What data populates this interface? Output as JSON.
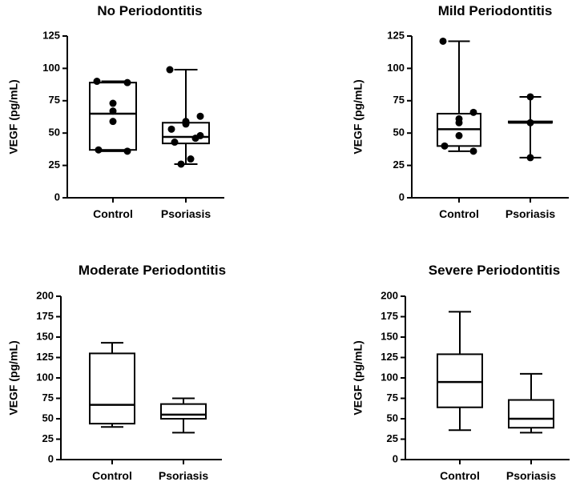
{
  "chart_data": [
    {
      "type": "box",
      "title": "No Periodontitis",
      "ylabel": "VEGF (pg/mL)",
      "ylim": [
        0,
        125
      ],
      "yticks": [
        0,
        25,
        50,
        75,
        100,
        125
      ],
      "categories": [
        "Control",
        "Psoriasis"
      ],
      "boxes": [
        {
          "name": "Control",
          "min": 36,
          "q1": 37,
          "median": 65,
          "q3": 89,
          "max": 90,
          "points": [
            90,
            89,
            73,
            67,
            59,
            37,
            36
          ]
        },
        {
          "name": "Psoriasis",
          "min": 26,
          "q1": 42,
          "median": 47,
          "q3": 58,
          "max": 99,
          "points": [
            99,
            63,
            59,
            58,
            57,
            53,
            48,
            46,
            43,
            30,
            26
          ]
        }
      ]
    },
    {
      "type": "box",
      "title": "Mild Periodontitis",
      "ylabel": "VEGF (pg/mL)",
      "ylim": [
        0,
        125
      ],
      "yticks": [
        0,
        25,
        50,
        75,
        100,
        125
      ],
      "categories": [
        "Control",
        "Psoriasis"
      ],
      "boxes": [
        {
          "name": "Control",
          "min": 36,
          "q1": 40,
          "median": 53,
          "q3": 65,
          "max": 121,
          "points": [
            121,
            66,
            61,
            58,
            48,
            40,
            36
          ]
        },
        {
          "name": "Psoriasis",
          "min": 31,
          "q1": 58,
          "median": 58,
          "q3": 59,
          "max": 78,
          "points": [
            78,
            58,
            31
          ]
        }
      ]
    },
    {
      "type": "box",
      "title": "Moderate Periodontitis",
      "ylabel": "VEGF (pg/mL)",
      "ylim": [
        0,
        200
      ],
      "yticks": [
        0,
        25,
        50,
        75,
        100,
        125,
        150,
        175,
        200
      ],
      "categories": [
        "Control",
        "Psoriasis"
      ],
      "boxes": [
        {
          "name": "Control",
          "min": 40,
          "q1": 44,
          "median": 67,
          "q3": 130,
          "max": 143
        },
        {
          "name": "Psoriasis",
          "min": 33,
          "q1": 50,
          "median": 55,
          "q3": 68,
          "max": 75
        }
      ]
    },
    {
      "type": "box",
      "title": "Severe Periodontitis",
      "ylabel": "VEGF (pg/mL)",
      "ylim": [
        0,
        200
      ],
      "yticks": [
        0,
        25,
        50,
        75,
        100,
        125,
        150,
        175,
        200
      ],
      "categories": [
        "Control",
        "Psoriasis"
      ],
      "boxes": [
        {
          "name": "Control",
          "min": 36,
          "q1": 64,
          "median": 95,
          "q3": 129,
          "max": 181
        },
        {
          "name": "Psoriasis",
          "min": 33,
          "q1": 39,
          "median": 50,
          "q3": 73,
          "max": 105
        }
      ]
    }
  ]
}
